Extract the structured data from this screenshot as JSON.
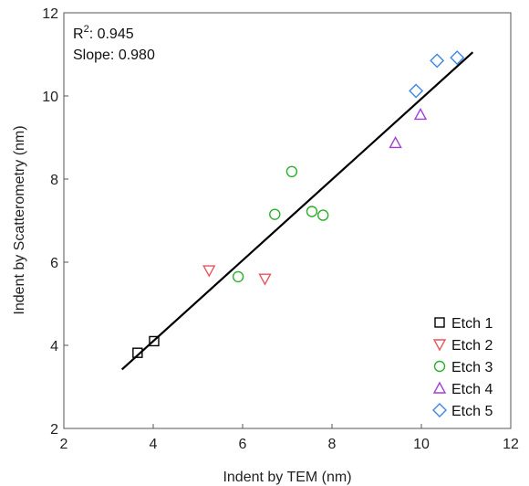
{
  "chart_data": {
    "type": "scatter",
    "xlabel": "Indent by TEM (nm)",
    "ylabel": "Indent by Scatterometry (nm)",
    "xlim": [
      2,
      12
    ],
    "ylim": [
      2,
      12
    ],
    "xticks": [
      2,
      4,
      6,
      8,
      10,
      12
    ],
    "yticks": [
      2,
      4,
      6,
      8,
      10,
      12
    ],
    "grid": false,
    "legend_position": "bottom-right",
    "annotations": {
      "r2_label": "R",
      "r2_sup": "2",
      "r2_value": ": 0.945",
      "slope_text": "Slope: 0.980"
    },
    "fit_line": {
      "x": [
        3.3,
        11.15
      ],
      "y": [
        3.42,
        11.05
      ],
      "color": "#000000"
    },
    "series": [
      {
        "name": "Etch 1",
        "marker": "square",
        "color": "#000000",
        "points": [
          [
            3.65,
            3.82
          ],
          [
            4.02,
            4.1
          ]
        ]
      },
      {
        "name": "Etch 2",
        "marker": "triangle-down",
        "color": "#e8545c",
        "points": [
          [
            5.25,
            5.8
          ],
          [
            6.5,
            5.6
          ]
        ]
      },
      {
        "name": "Etch 3",
        "marker": "circle",
        "color": "#2bb02b",
        "points": [
          [
            5.9,
            5.65
          ],
          [
            6.72,
            7.15
          ],
          [
            7.1,
            8.18
          ],
          [
            7.55,
            7.22
          ],
          [
            7.8,
            7.13
          ]
        ]
      },
      {
        "name": "Etch 4",
        "marker": "triangle-up",
        "color": "#a23ed6",
        "points": [
          [
            9.42,
            8.87
          ],
          [
            9.98,
            9.55
          ]
        ]
      },
      {
        "name": "Etch 5",
        "marker": "diamond",
        "color": "#3f86e8",
        "points": [
          [
            9.88,
            10.12
          ],
          [
            10.35,
            10.85
          ],
          [
            10.8,
            10.92
          ]
        ]
      }
    ]
  }
}
